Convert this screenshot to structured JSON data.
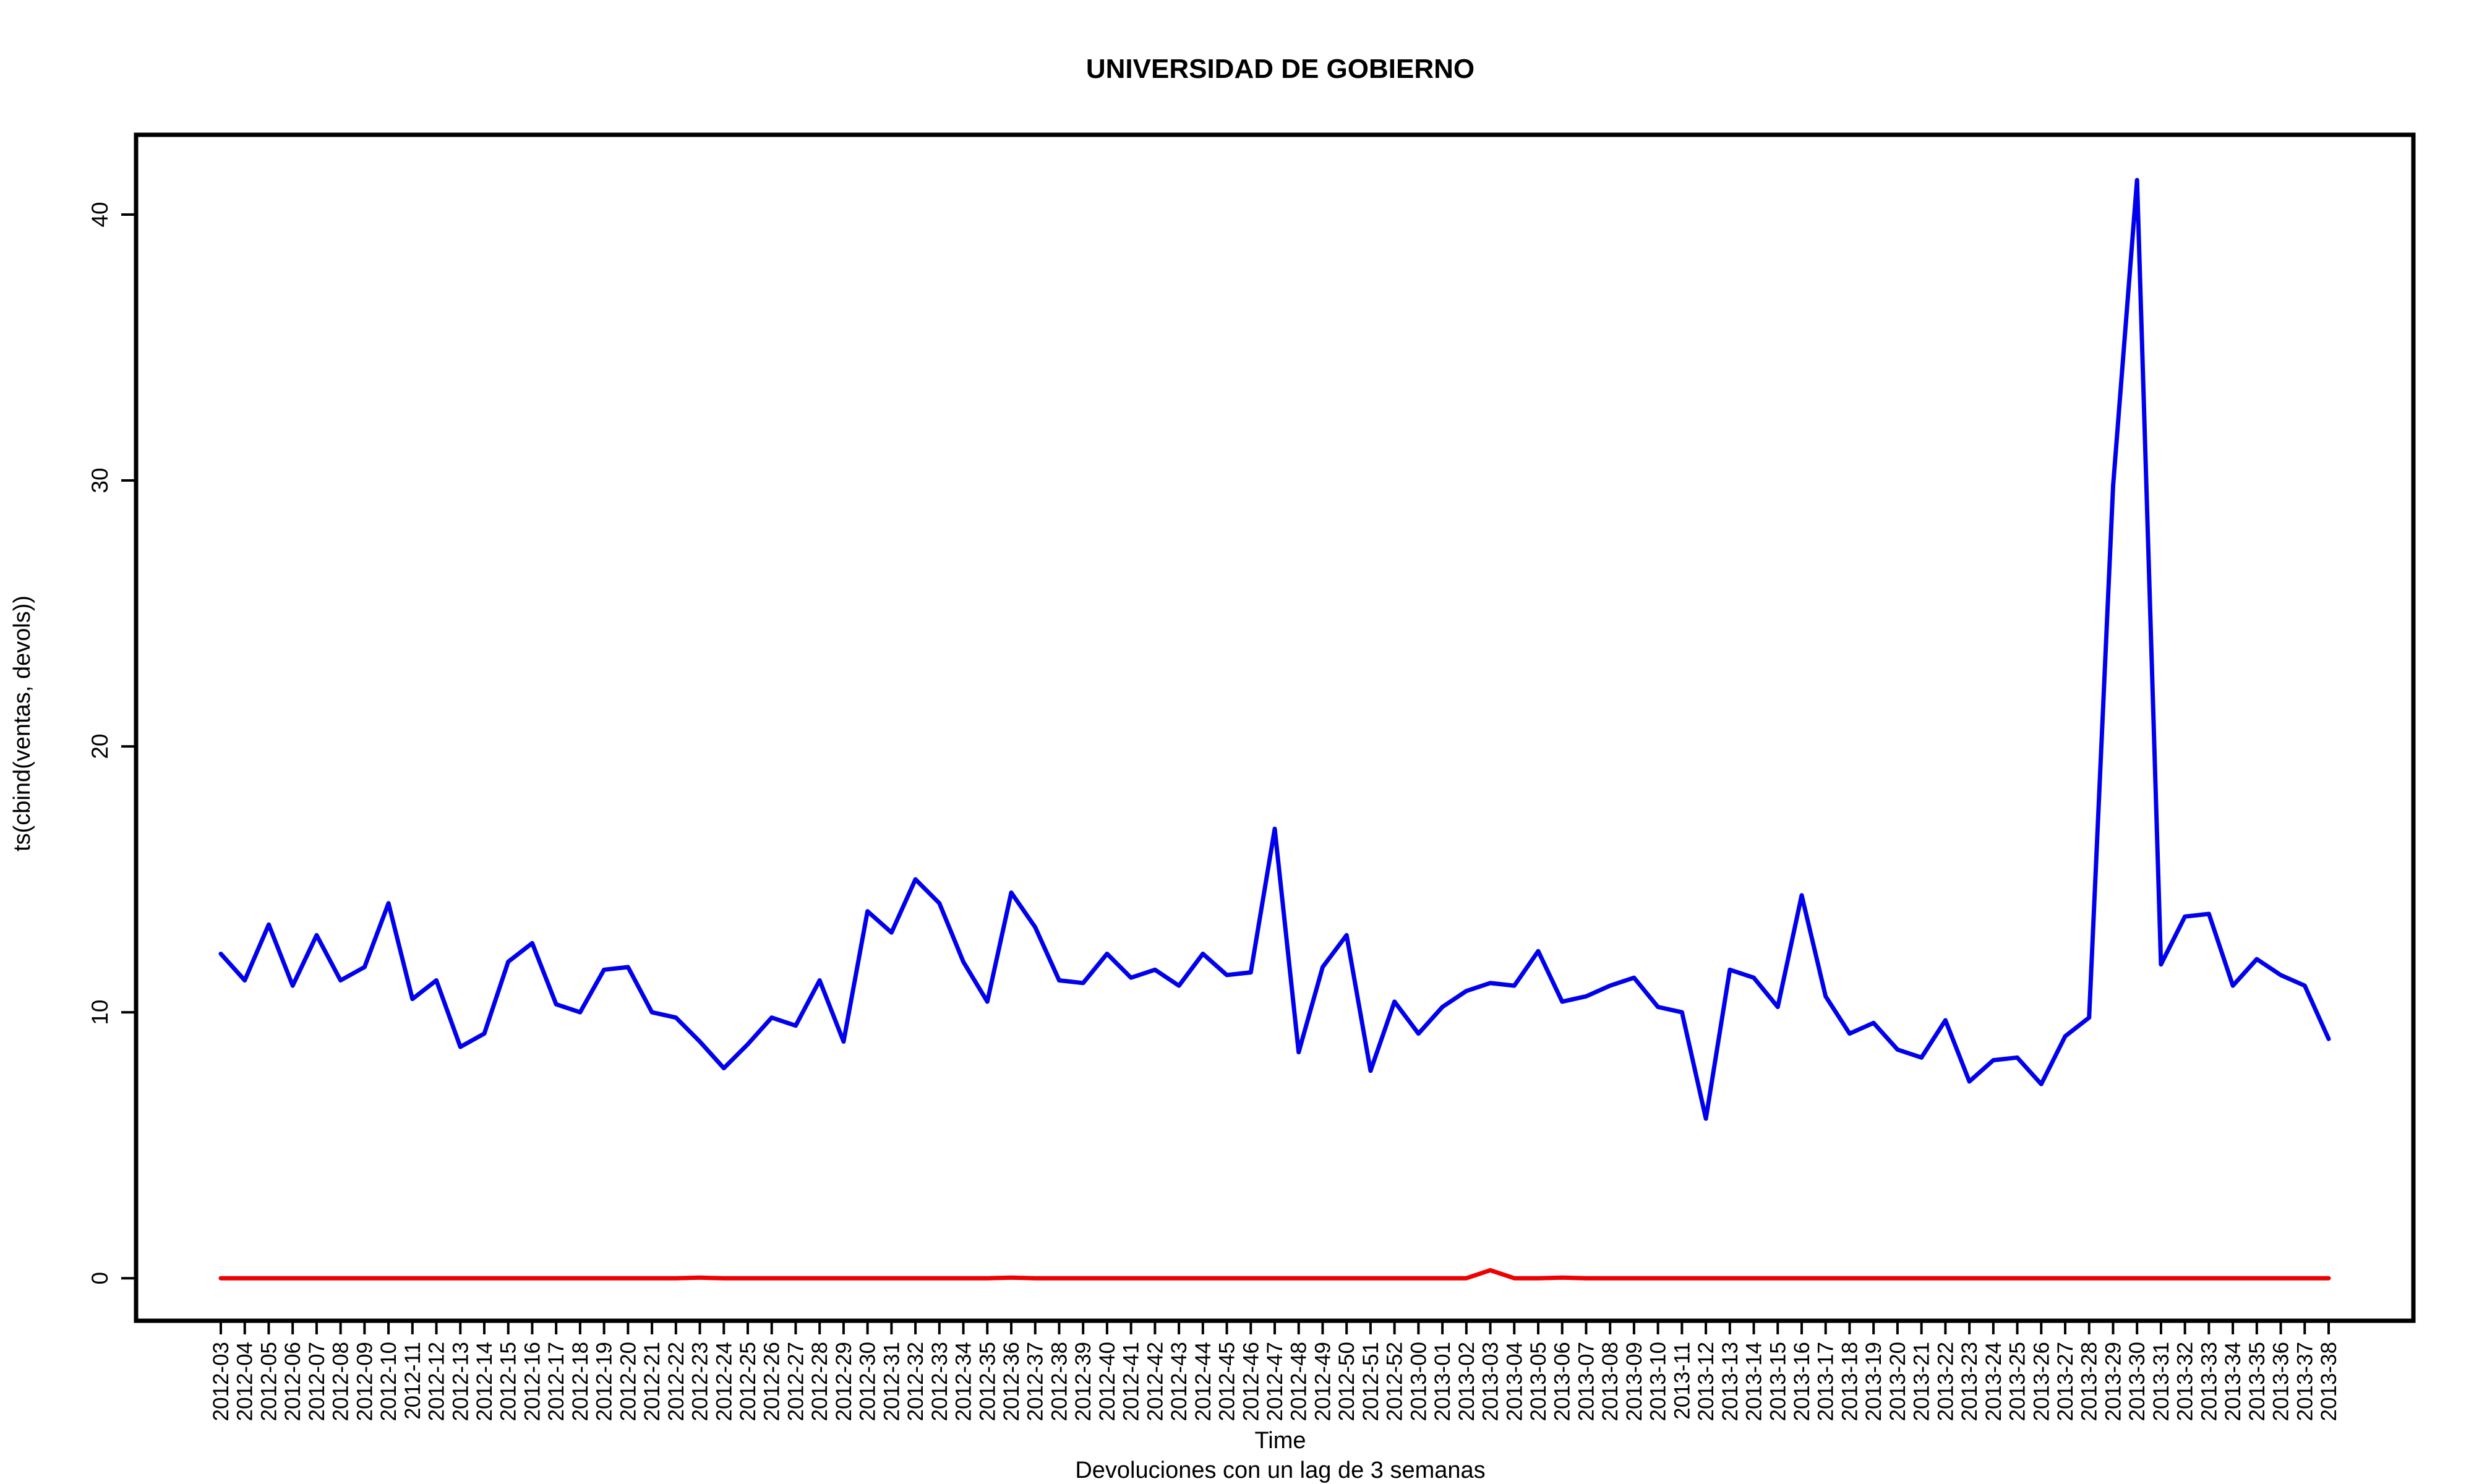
{
  "chart_data": {
    "type": "line",
    "title": "UNIVERSIDAD DE GOBIERNO",
    "xlabel": "Time",
    "subtitle": "Devoluciones con un lag de 3 semanas",
    "ylabel": "ts(cbind(ventas, devols))",
    "ylim": [
      -1.6,
      43
    ],
    "yticks": [
      0,
      10,
      20,
      30,
      40
    ],
    "ytick_labels": [
      "0",
      "10",
      "20",
      "30",
      "40"
    ],
    "grid": false,
    "x": [
      "2012-03",
      "2012-04",
      "2012-05",
      "2012-06",
      "2012-07",
      "2012-08",
      "2012-09",
      "2012-10",
      "2012-11",
      "2012-12",
      "2012-13",
      "2012-14",
      "2012-15",
      "2012-16",
      "2012-17",
      "2012-18",
      "2012-19",
      "2012-20",
      "2012-21",
      "2012-22",
      "2012-23",
      "2012-24",
      "2012-25",
      "2012-26",
      "2012-27",
      "2012-28",
      "2012-29",
      "2012-30",
      "2012-31",
      "2012-32",
      "2012-33",
      "2012-34",
      "2012-35",
      "2012-36",
      "2012-37",
      "2012-38",
      "2012-39",
      "2012-40",
      "2012-41",
      "2012-42",
      "2012-43",
      "2012-44",
      "2012-45",
      "2012-46",
      "2012-47",
      "2012-48",
      "2012-49",
      "2012-50",
      "2012-51",
      "2012-52",
      "2013-00",
      "2013-01",
      "2013-02",
      "2013-03",
      "2013-04",
      "2013-05",
      "2013-06",
      "2013-07",
      "2013-08",
      "2013-09",
      "2013-10",
      "2013-11",
      "2013-12",
      "2013-13",
      "2013-14",
      "2013-15",
      "2013-16",
      "2013-17",
      "2013-18",
      "2013-19",
      "2013-20",
      "2013-21",
      "2013-22",
      "2013-23",
      "2013-24",
      "2013-25",
      "2013-26",
      "2013-27",
      "2013-28",
      "2013-29",
      "2013-30",
      "2013-31",
      "2013-32",
      "2013-33",
      "2013-34",
      "2013-35",
      "2013-36",
      "2013-37",
      "2013-38"
    ],
    "series": [
      {
        "color": "#0000ee",
        "values": [
          12.2,
          11.2,
          13.3,
          11.0,
          12.9,
          11.2,
          11.7,
          14.1,
          10.5,
          11.2,
          8.7,
          9.2,
          11.9,
          12.6,
          10.3,
          10.0,
          11.6,
          11.7,
          10.0,
          9.8,
          8.9,
          7.9,
          8.8,
          9.8,
          9.5,
          11.2,
          8.9,
          13.8,
          13.0,
          15.0,
          14.1,
          11.9,
          10.4,
          14.5,
          13.2,
          11.2,
          11.1,
          12.2,
          11.3,
          11.6,
          11.0,
          12.2,
          11.4,
          11.5,
          16.9,
          8.5,
          11.7,
          12.9,
          7.8,
          10.4,
          9.2,
          10.2,
          10.8,
          11.1,
          11.0,
          12.3,
          10.4,
          10.6,
          11.0,
          11.3,
          10.2,
          10.0,
          6.0,
          11.6,
          11.3,
          10.2,
          14.4,
          10.6,
          9.2,
          9.6,
          8.6,
          8.3,
          9.7,
          7.4,
          8.2,
          8.3,
          7.3,
          9.1,
          9.8,
          29.8,
          41.3,
          11.8,
          13.6,
          13.7,
          11.0,
          12.0,
          11.4,
          11.0,
          9.0
        ]
      },
      {
        "color": "#ee0000",
        "values": [
          0,
          0,
          0,
          0,
          0,
          0,
          0,
          0,
          0,
          0,
          0,
          0,
          0,
          0,
          0,
          0,
          0,
          0,
          0,
          0,
          0.02,
          0,
          0,
          0,
          0,
          0,
          0,
          0,
          0,
          0,
          0,
          0,
          0,
          0.02,
          0,
          0,
          0,
          0,
          0,
          0,
          0,
          0,
          0,
          0,
          0,
          0,
          0,
          0,
          0,
          0,
          0,
          0,
          0,
          0.3,
          0,
          0,
          0.02,
          0,
          0,
          0,
          0,
          0,
          0,
          0,
          0,
          0,
          0,
          0,
          0,
          0,
          0,
          0,
          0,
          0,
          0,
          0,
          0,
          0,
          0,
          0,
          0,
          0,
          0,
          0,
          0,
          0,
          0,
          0,
          0
        ]
      }
    ]
  }
}
